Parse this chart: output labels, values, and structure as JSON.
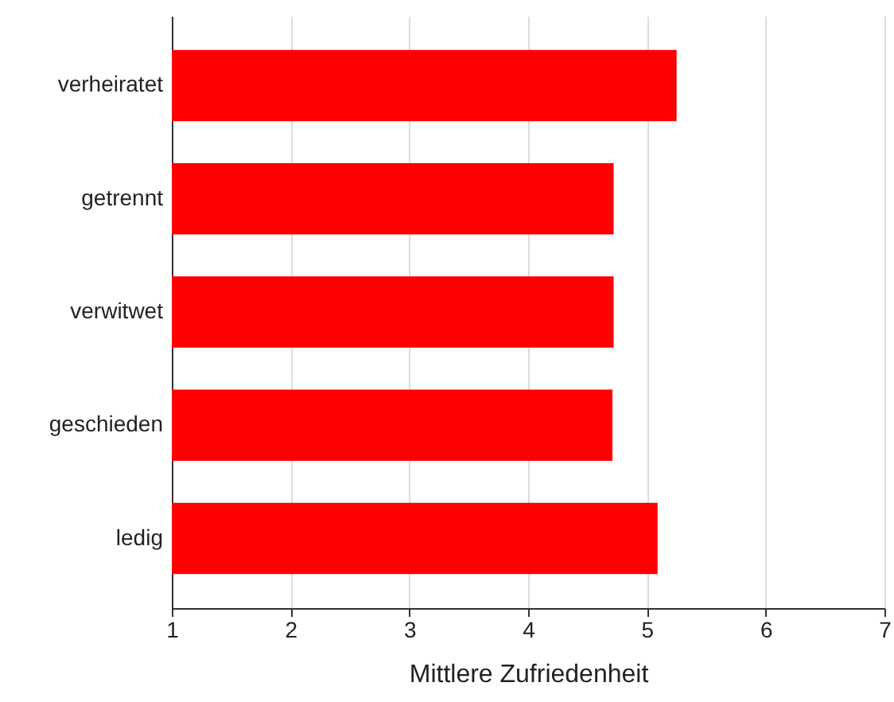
{
  "chart_data": {
    "type": "bar",
    "orientation": "horizontal",
    "xlabel": "Mittlere Zufriedenheit",
    "categories": [
      "verheiratet",
      "getrennt",
      "verwitwet",
      "geschieden",
      "ledig"
    ],
    "values": [
      5.25,
      4.72,
      4.72,
      4.71,
      5.09
    ],
    "color": "#ff0000",
    "xlim": [
      1,
      7
    ],
    "xticks": [
      1,
      2,
      3,
      4,
      5,
      6,
      7
    ],
    "grid": "x"
  }
}
